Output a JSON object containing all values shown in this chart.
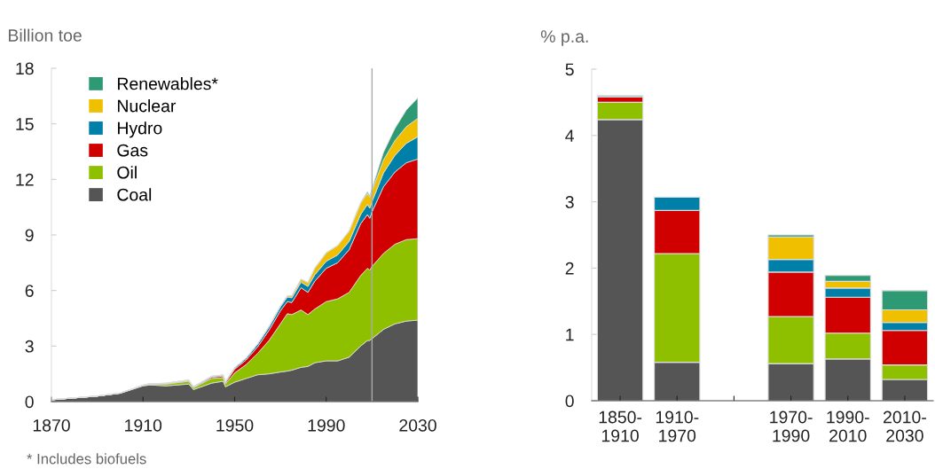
{
  "chart_data": [
    {
      "type": "area",
      "stacked": true,
      "ylabel": "Billion toe",
      "legend": "top left",
      "x": [
        1870,
        1880,
        1890,
        1900,
        1910,
        1913,
        1920,
        1930,
        1932,
        1940,
        1945,
        1946,
        1950,
        1955,
        1960,
        1965,
        1970,
        1973,
        1975,
        1979,
        1982,
        1985,
        1990,
        1995,
        2000,
        2005,
        2008,
        2009,
        2010,
        2015,
        2020,
        2025,
        2030
      ],
      "xlim": [
        1870,
        2030
      ],
      "xticks": [
        1870,
        1910,
        1950,
        1990,
        2030
      ],
      "ylim": [
        0,
        18
      ],
      "yticks": [
        0,
        3,
        6,
        9,
        12,
        15,
        18
      ],
      "series": [
        {
          "name": "Coal",
          "color": "#555555",
          "values": [
            0.1,
            0.2,
            0.3,
            0.45,
            0.85,
            0.9,
            0.85,
            0.95,
            0.65,
            1.0,
            1.1,
            0.8,
            1.05,
            1.25,
            1.45,
            1.5,
            1.6,
            1.65,
            1.7,
            1.85,
            1.9,
            2.1,
            2.2,
            2.2,
            2.4,
            3.0,
            3.3,
            3.3,
            3.4,
            3.9,
            4.2,
            4.35,
            4.4
          ]
        },
        {
          "name": "Oil",
          "color": "#8fc000",
          "values": [
            0,
            0,
            0,
            0.01,
            0.03,
            0.05,
            0.1,
            0.15,
            0.1,
            0.25,
            0.2,
            0.15,
            0.5,
            0.75,
            1.15,
            1.8,
            2.6,
            3.1,
            3.0,
            3.1,
            2.8,
            2.9,
            3.2,
            3.35,
            3.5,
            3.8,
            3.9,
            3.8,
            3.9,
            4.1,
            4.3,
            4.4,
            4.4
          ]
        },
        {
          "name": "Gas",
          "color": "#d00000",
          "values": [
            0,
            0,
            0,
            0,
            0,
            0.01,
            0.02,
            0.04,
            0.03,
            0.07,
            0.08,
            0.07,
            0.2,
            0.25,
            0.35,
            0.55,
            0.7,
            0.65,
            0.65,
            1.2,
            1.2,
            1.5,
            1.8,
            1.95,
            2.3,
            2.8,
            2.9,
            2.8,
            2.95,
            3.6,
            3.9,
            4.15,
            4.3
          ]
        },
        {
          "name": "Hydro",
          "color": "#0080a8",
          "values": [
            0,
            0,
            0,
            0,
            0.01,
            0.01,
            0.02,
            0.03,
            0.03,
            0.05,
            0.06,
            0.06,
            0.08,
            0.1,
            0.15,
            0.18,
            0.22,
            0.25,
            0.26,
            0.3,
            0.32,
            0.35,
            0.38,
            0.42,
            0.45,
            0.5,
            0.55,
            0.55,
            0.55,
            0.75,
            0.9,
            1.05,
            1.2
          ]
        },
        {
          "name": "Nuclear",
          "color": "#f0c000",
          "values": [
            0,
            0,
            0,
            0,
            0,
            0,
            0,
            0,
            0,
            0,
            0,
            0,
            0,
            0,
            0.01,
            0.02,
            0.03,
            0.05,
            0.1,
            0.15,
            0.2,
            0.35,
            0.45,
            0.5,
            0.55,
            0.6,
            0.6,
            0.6,
            0.6,
            0.7,
            0.8,
            0.9,
            1.0
          ]
        },
        {
          "name": "Renewables*",
          "color": "#2e9a74",
          "values": [
            0,
            0,
            0,
            0,
            0,
            0,
            0,
            0,
            0,
            0,
            0,
            0,
            0,
            0,
            0,
            0,
            0.02,
            0.02,
            0.02,
            0.02,
            0.02,
            0.02,
            0.02,
            0.02,
            0.02,
            0.05,
            0.08,
            0.08,
            0.1,
            0.4,
            0.65,
            0.9,
            1.1
          ]
        }
      ],
      "ref_lines": [
        {
          "axis": "x",
          "value": 2010,
          "color": "#aaaaaa"
        }
      ],
      "annotations": [
        "* Includes biofuels"
      ]
    },
    {
      "type": "bar",
      "stacked": true,
      "ylabel": "% p.a.",
      "legend": false,
      "categories": [
        "1850-\n1910",
        "1910-\n1970",
        null,
        "1970-\n1990",
        "1990-\n2010",
        "2010-\n2030"
      ],
      "ylim": [
        0,
        5
      ],
      "yticks": [
        0,
        1,
        2,
        3,
        4,
        5
      ],
      "series": [
        {
          "color": "#555555",
          "values": [
            4.24,
            0.58,
            null,
            0.56,
            0.63,
            0.32
          ]
        },
        {
          "color": "#8fc000",
          "values": [
            0.26,
            1.64,
            null,
            0.71,
            0.39,
            0.22
          ]
        },
        {
          "color": "#d00000",
          "values": [
            0.08,
            0.65,
            null,
            0.67,
            0.54,
            0.52
          ]
        },
        {
          "color": "#0080a8",
          "values": [
            0.02,
            0.2,
            null,
            0.19,
            0.14,
            0.12
          ]
        },
        {
          "color": "#f0c000",
          "values": [
            0,
            0,
            null,
            0.34,
            0.1,
            0.19
          ]
        },
        {
          "color": "#2e9a74",
          "values": [
            0,
            0,
            null,
            0.03,
            0.09,
            0.29
          ]
        }
      ]
    }
  ]
}
